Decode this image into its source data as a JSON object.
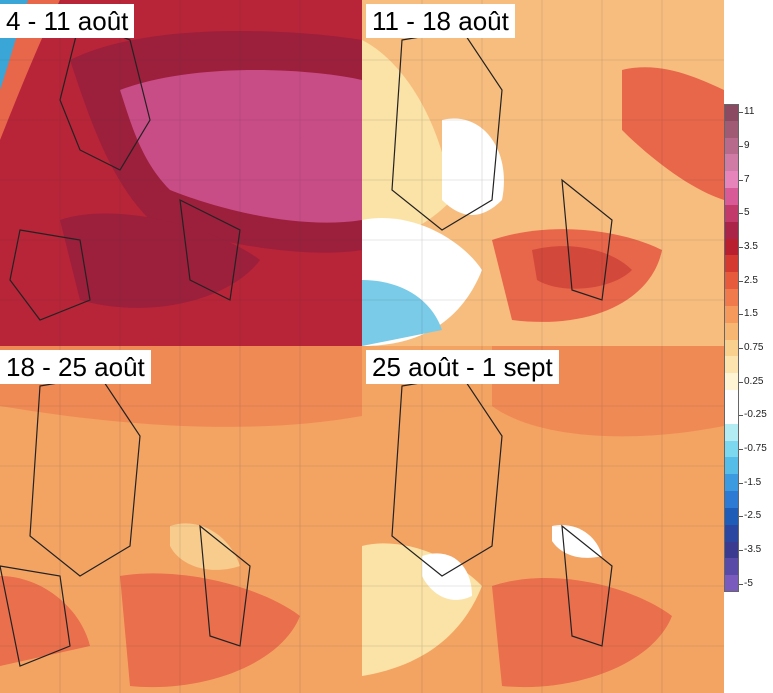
{
  "panels": [
    {
      "id": "p1",
      "label": "4 - 11 août",
      "palette": {
        "sea": "#d23b2f",
        "land": "#b82438",
        "hot": "#9c1f3c",
        "hotter": "#c84c86",
        "cool": "#e8664a",
        "cold": "#3aa6d8"
      }
    },
    {
      "id": "p2",
      "label": "11 - 18 août",
      "palette": {
        "sea": "#f3a463",
        "land": "#f7bd7e",
        "hot": "#e8664a",
        "hotter": "#d2483a",
        "cool": "#fbe2a6",
        "cold": "#79cbe8"
      }
    },
    {
      "id": "p3",
      "label": "18 - 25 août",
      "palette": {
        "sea": "#f08a55",
        "land": "#f3a463",
        "hot": "#ea6f4c",
        "hotter": "#e25c45",
        "cool": "#f8cc8d",
        "cold": "#fbe9b5"
      }
    },
    {
      "id": "p4",
      "label": "25 août - 1 sept",
      "palette": {
        "sea": "#f08a55",
        "land": "#f3a463",
        "hot": "#ea6f4c",
        "hotter": "#e25c45",
        "cool": "#fbe2a6",
        "cold": "#ffffff"
      }
    }
  ],
  "legend": {
    "items": [
      {
        "label": "11",
        "color": "#8c4a62"
      },
      {
        "label": "",
        "color": "#a05a74"
      },
      {
        "label": "9",
        "color": "#b86a8c"
      },
      {
        "label": "",
        "color": "#d07aa6"
      },
      {
        "label": "7",
        "color": "#e884bc"
      },
      {
        "label": "",
        "color": "#d85a96"
      },
      {
        "label": "5",
        "color": "#c13a6a"
      },
      {
        "label": "",
        "color": "#a92448"
      },
      {
        "label": "3.5",
        "color": "#b81f2f"
      },
      {
        "label": "",
        "color": "#d43a2f"
      },
      {
        "label": "2.5",
        "color": "#e85a3c"
      },
      {
        "label": "",
        "color": "#f07a4c"
      },
      {
        "label": "1.5",
        "color": "#f59a5c"
      },
      {
        "label": "",
        "color": "#f7b672"
      },
      {
        "label": "0.75",
        "color": "#fad08e"
      },
      {
        "label": "",
        "color": "#fde4ae"
      },
      {
        "label": "0.25",
        "color": "#fff4d4"
      },
      {
        "label": "",
        "color": "#ffffff"
      },
      {
        "label": "-0.25",
        "color": "#ffffff"
      },
      {
        "label": "",
        "color": "#b4ecf4"
      },
      {
        "label": "-0.75",
        "color": "#7cd8ee"
      },
      {
        "label": "",
        "color": "#56bce8"
      },
      {
        "label": "-1.5",
        "color": "#3c9ae0"
      },
      {
        "label": "",
        "color": "#2c7ad4"
      },
      {
        "label": "-2.5",
        "color": "#1e5cb8"
      },
      {
        "label": "",
        "color": "#2a46a0"
      },
      {
        "label": "-3.5",
        "color": "#3a3a90"
      },
      {
        "label": "",
        "color": "#5a4aa8"
      },
      {
        "label": "-5",
        "color": "#7a5abc"
      }
    ]
  }
}
